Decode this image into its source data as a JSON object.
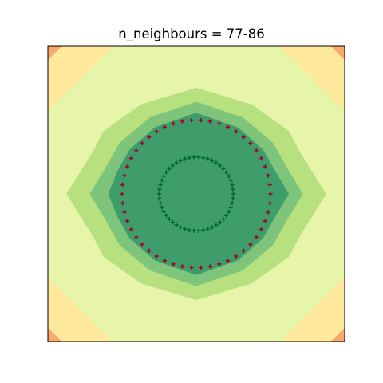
{
  "chart_data": {
    "type": "scatter",
    "title": "n_neighbours = 77-86",
    "xlabel": "",
    "ylabel": "",
    "xlim": [
      -1.6,
      1.6
    ],
    "ylim": [
      -1.6,
      1.6
    ],
    "grid": false,
    "axis_ticks": false,
    "contour": {
      "levels": [
        {
          "name": "level-0",
          "color": "#f9a86a"
        },
        {
          "name": "level-1",
          "color": "#fee99d"
        },
        {
          "name": "level-2",
          "color": "#e6f5a9"
        },
        {
          "name": "level-3",
          "color": "#b7e07f"
        },
        {
          "name": "level-4",
          "color": "#7ec57b"
        },
        {
          "name": "level-5",
          "color": "#3f9c6b"
        }
      ],
      "regions": [
        {
          "level": 0,
          "points": [
            [
              -1.6,
              -1.6
            ],
            [
              1.6,
              -1.6
            ],
            [
              1.6,
              1.6
            ],
            [
              -1.6,
              1.6
            ]
          ]
        },
        {
          "level": 1,
          "points": [
            [
              -1.45,
              -1.6
            ],
            [
              1.45,
              -1.6
            ],
            [
              1.6,
              -1.45
            ],
            [
              1.6,
              1.45
            ],
            [
              1.45,
              1.6
            ],
            [
              -1.45,
              1.6
            ],
            [
              -1.6,
              1.45
            ],
            [
              -1.6,
              -1.45
            ]
          ]
        },
        {
          "level": 2,
          "points": [
            [
              -0.9,
              -1.6
            ],
            [
              0.9,
              -1.6
            ],
            [
              1.6,
              -0.9
            ],
            [
              1.6,
              0.9
            ],
            [
              0.9,
              1.6
            ],
            [
              -0.9,
              1.6
            ],
            [
              -1.6,
              0.9
            ],
            [
              -1.6,
              -0.9
            ]
          ]
        },
        {
          "level": 3,
          "points": [
            [
              0,
              -1.15
            ],
            [
              0.6,
              -0.97
            ],
            [
              1.0,
              -0.68
            ],
            [
              1.12,
              -0.45
            ],
            [
              1.4,
              0
            ],
            [
              1.12,
              0.45
            ],
            [
              1.0,
              0.68
            ],
            [
              0.6,
              0.97
            ],
            [
              0,
              1.15
            ],
            [
              -0.6,
              0.97
            ],
            [
              -1.0,
              0.68
            ],
            [
              -1.12,
              0.45
            ],
            [
              -1.4,
              0
            ],
            [
              -1.12,
              -0.45
            ],
            [
              -1.0,
              -0.68
            ],
            [
              -0.6,
              -0.97
            ]
          ]
        },
        {
          "level": 4,
          "points": [
            [
              0,
              -1.0
            ],
            [
              0.5,
              -0.83
            ],
            [
              0.83,
              -0.55
            ],
            [
              0.98,
              -0.28
            ],
            [
              1.15,
              0
            ],
            [
              0.98,
              0.28
            ],
            [
              0.83,
              0.55
            ],
            [
              0.5,
              0.83
            ],
            [
              0,
              1.0
            ],
            [
              -0.5,
              0.83
            ],
            [
              -0.83,
              0.55
            ],
            [
              -0.98,
              0.28
            ],
            [
              -1.15,
              0
            ],
            [
              -0.98,
              -0.28
            ],
            [
              -0.83,
              -0.55
            ],
            [
              -0.5,
              -0.83
            ]
          ]
        },
        {
          "level": 5,
          "points": [
            [
              0,
              -0.88
            ],
            [
              0.45,
              -0.72
            ],
            [
              0.72,
              -0.48
            ],
            [
              0.85,
              -0.25
            ],
            [
              1.0,
              0
            ],
            [
              0.85,
              0.25
            ],
            [
              0.72,
              0.48
            ],
            [
              0.45,
              0.72
            ],
            [
              0,
              0.88
            ],
            [
              -0.45,
              0.72
            ],
            [
              -0.72,
              0.48
            ],
            [
              -0.85,
              0.25
            ],
            [
              -0.95,
              0
            ],
            [
              -0.85,
              -0.25
            ],
            [
              -0.72,
              -0.48
            ],
            [
              -0.45,
              -0.72
            ]
          ]
        }
      ]
    },
    "series": [
      {
        "shape": "circle",
        "cx": 0,
        "cy": 0,
        "r": 0.8,
        "count": 50,
        "color": "#a50026",
        "marker": "+"
      },
      {
        "shape": "circle",
        "cx": 0,
        "cy": 0,
        "r": 0.4,
        "count": 50,
        "color": "#006837",
        "marker": "+"
      }
    ]
  }
}
